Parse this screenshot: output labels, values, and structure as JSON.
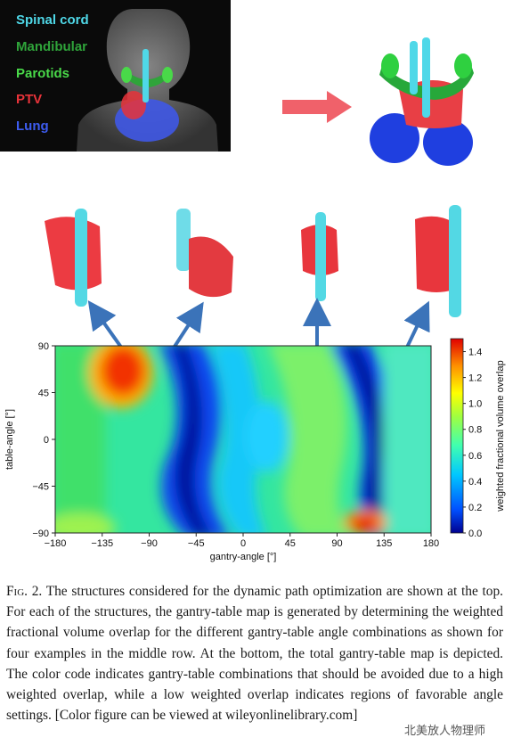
{
  "legend": {
    "items": [
      {
        "label": "Spinal cord",
        "color": "#4fd8e8"
      },
      {
        "label": "Mandibular",
        "color": "#2fa43a"
      },
      {
        "label": "Parotids",
        "color": "#49d949"
      },
      {
        "label": "PTV",
        "color": "#e8333a"
      },
      {
        "label": "Lung",
        "color": "#3d5cf0"
      }
    ]
  },
  "chart_data": {
    "type": "heatmap",
    "xlabel": "gantry-angle [°]",
    "ylabel": "table-angle [°]",
    "xlim": [
      -180,
      180
    ],
    "ylim": [
      -90,
      90
    ],
    "xticks": [
      "−180",
      "−135",
      "−90",
      "−45",
      "0",
      "45",
      "90",
      "135",
      "180"
    ],
    "yticks": [
      "90",
      "45",
      "0",
      "−45",
      "−90"
    ],
    "colorbar": {
      "label": "weighted fractional volume overlap",
      "range": [
        0,
        1.5
      ],
      "ticks": [
        "1.4",
        "1.2",
        "1.0",
        "0.8",
        "0.6",
        "0.4",
        "0.2",
        "0.0"
      ]
    }
  },
  "caption": {
    "fig_label": "Fig. 2.",
    "text": "The structures considered for the dynamic path optimization are shown at the top. For each of the structures, the gantry-table map is generated by determining the weighted fractional volume overlap for the different gantry-table angle combinations as shown for four examples in the middle row. At the bottom, the total gantry-table map is depicted. The color code indicates gantry-table combinations that should be avoided due to a high weighted overlap, while a low weighted overlap indicates regions of favorable angle settings. [Color figure can be viewed at wileyonlinelibrary.com]"
  },
  "watermark": "北美放人物理师"
}
